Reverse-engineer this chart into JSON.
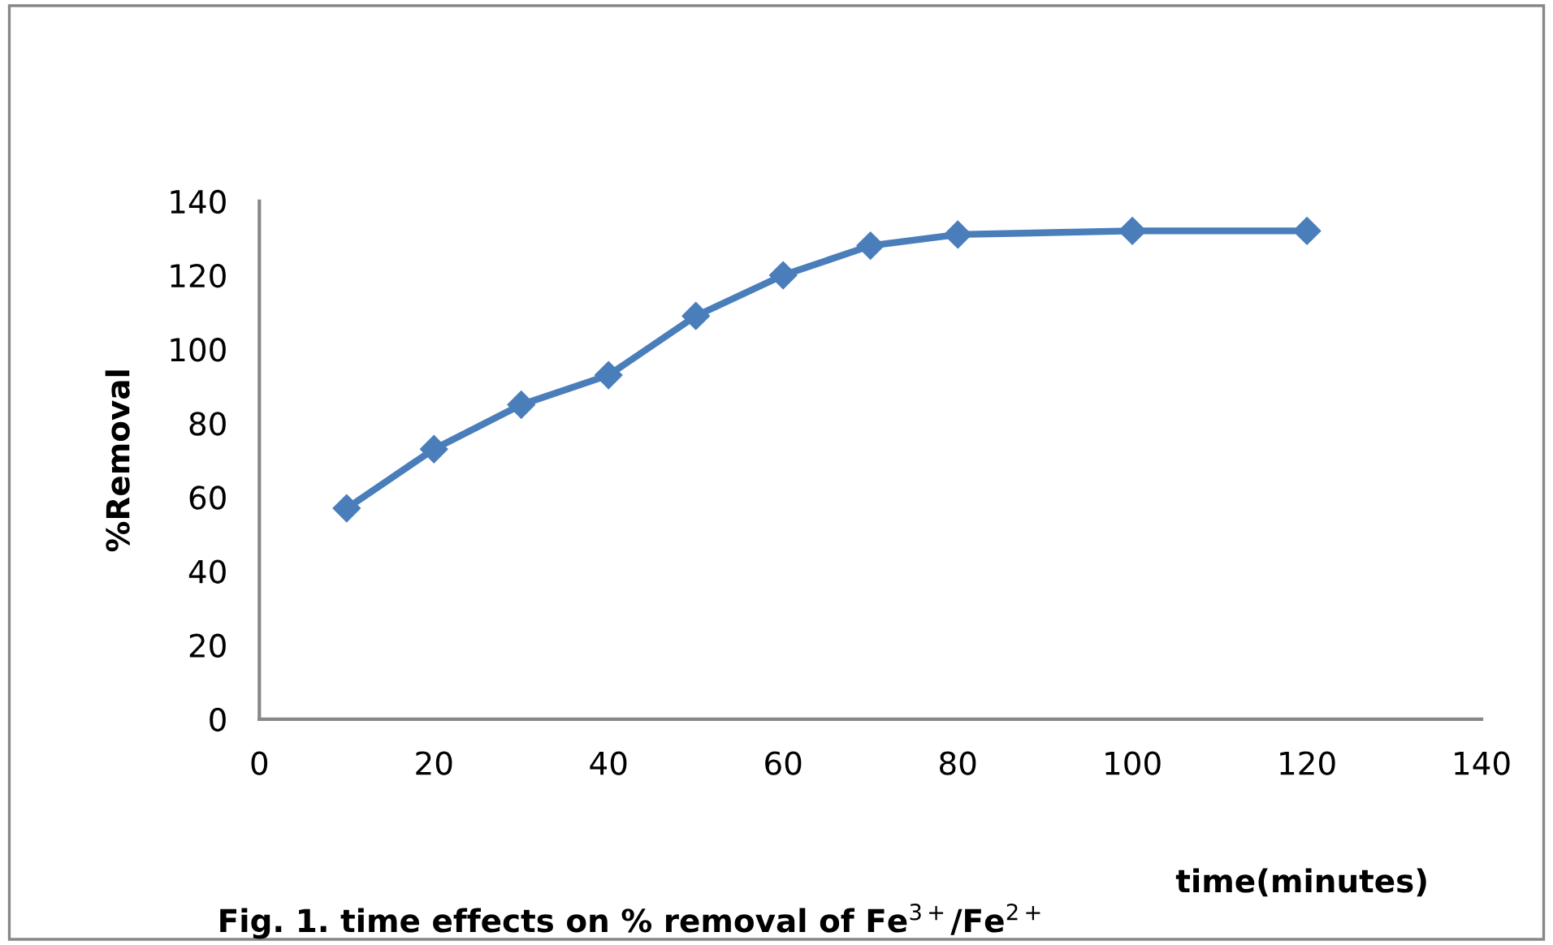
{
  "chart_data": {
    "type": "line",
    "title": "Fig. 1. time effects on % removal of Fe$^{3+}$/Fe$^{2+}$",
    "xlabel": "time(minutes)",
    "ylabel": "%Removal",
    "x": [
      10,
      20,
      30,
      40,
      50,
      60,
      70,
      80,
      100,
      120
    ],
    "series": [
      {
        "color": "#4a7ebb",
        "values": [
          57,
          73,
          85,
          93,
          109,
          120,
          128,
          131,
          132,
          132
        ]
      }
    ],
    "xlim": [
      0,
      140
    ],
    "xticks": [
      0,
      20,
      40,
      60,
      80,
      100,
      120,
      140
    ],
    "ylim": [
      0,
      140
    ],
    "yticks": [
      0,
      20,
      40,
      60,
      80,
      100,
      120,
      140
    ],
    "grid": false,
    "legend": false,
    "marker": "diamond",
    "line_style": "solid"
  }
}
